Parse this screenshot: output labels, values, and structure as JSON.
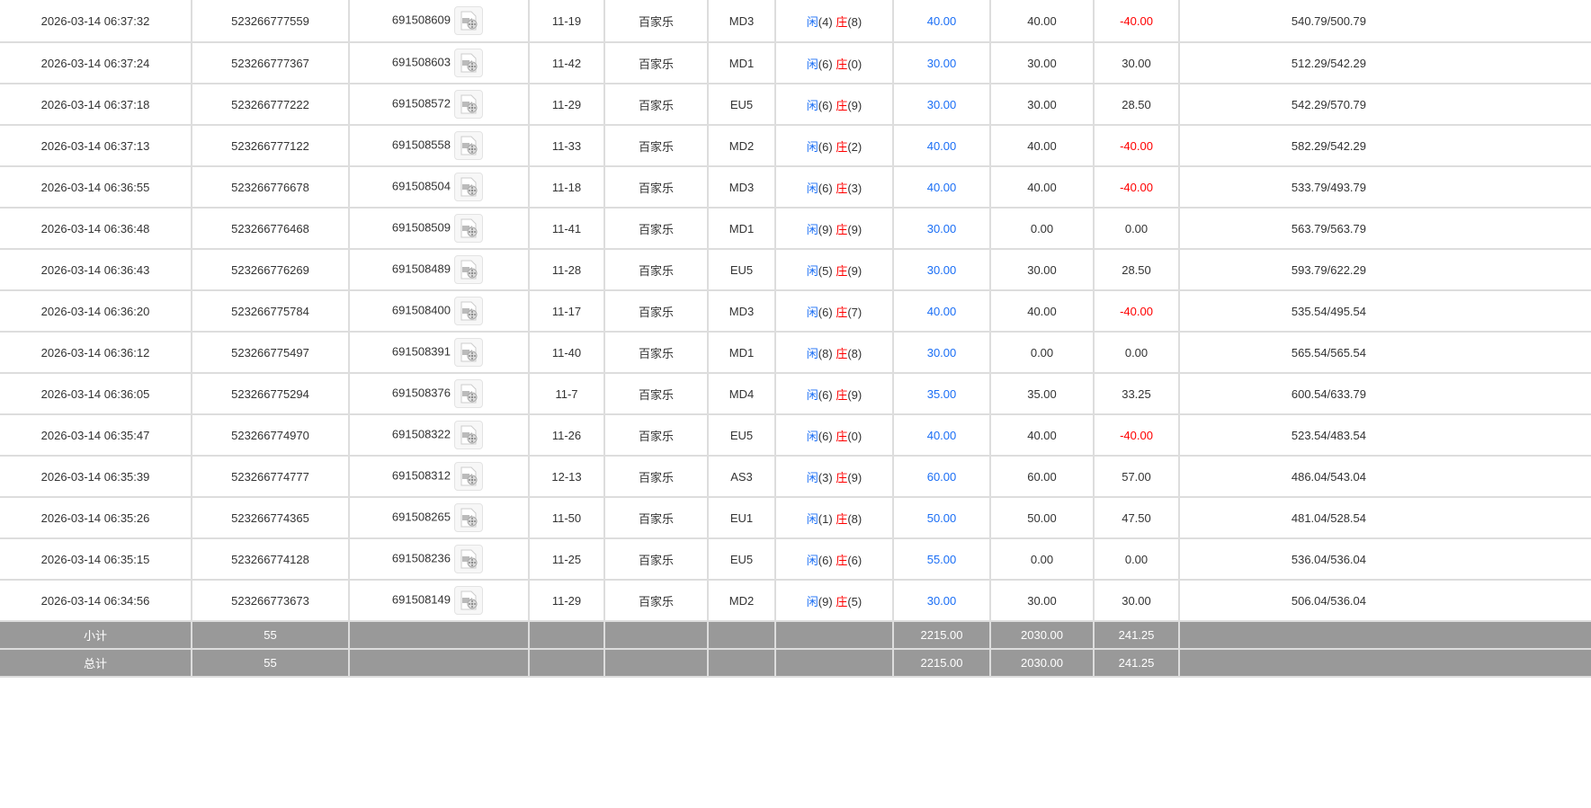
{
  "colors": {
    "player": "#1a6ef5",
    "banker": "#ff0000",
    "bet": "#1a6ef5",
    "loss": "#ff0000",
    "summary_bg": "#999999"
  },
  "rows": [
    {
      "time": "2026-03-14 06:37:32",
      "bet_id": "523266777559",
      "round_id": "691508609",
      "shoe": "11-19",
      "game": "百家乐",
      "table": "MD3",
      "player_label": "闲",
      "player": "(4)",
      "banker_label": "庄",
      "banker": "(8)",
      "bet": "40.00",
      "valid": "40.00",
      "win": "-40.00",
      "balance": "540.79/500.79"
    },
    {
      "time": "2026-03-14 06:37:24",
      "bet_id": "523266777367",
      "round_id": "691508603",
      "shoe": "11-42",
      "game": "百家乐",
      "table": "MD1",
      "player_label": "闲",
      "player": "(6)",
      "banker_label": "庄",
      "banker": "(0)",
      "bet": "30.00",
      "valid": "30.00",
      "win": "30.00",
      "balance": "512.29/542.29"
    },
    {
      "time": "2026-03-14 06:37:18",
      "bet_id": "523266777222",
      "round_id": "691508572",
      "shoe": "11-29",
      "game": "百家乐",
      "table": "EU5",
      "player_label": "闲",
      "player": "(6)",
      "banker_label": "庄",
      "banker": "(9)",
      "bet": "30.00",
      "valid": "30.00",
      "win": "28.50",
      "balance": "542.29/570.79"
    },
    {
      "time": "2026-03-14 06:37:13",
      "bet_id": "523266777122",
      "round_id": "691508558",
      "shoe": "11-33",
      "game": "百家乐",
      "table": "MD2",
      "player_label": "闲",
      "player": "(6)",
      "banker_label": "庄",
      "banker": "(2)",
      "bet": "40.00",
      "valid": "40.00",
      "win": "-40.00",
      "balance": "582.29/542.29"
    },
    {
      "time": "2026-03-14 06:36:55",
      "bet_id": "523266776678",
      "round_id": "691508504",
      "shoe": "11-18",
      "game": "百家乐",
      "table": "MD3",
      "player_label": "闲",
      "player": "(6)",
      "banker_label": "庄",
      "banker": "(3)",
      "bet": "40.00",
      "valid": "40.00",
      "win": "-40.00",
      "balance": "533.79/493.79"
    },
    {
      "time": "2026-03-14 06:36:48",
      "bet_id": "523266776468",
      "round_id": "691508509",
      "shoe": "11-41",
      "game": "百家乐",
      "table": "MD1",
      "player_label": "闲",
      "player": "(9)",
      "banker_label": "庄",
      "banker": "(9)",
      "bet": "30.00",
      "valid": "0.00",
      "win": "0.00",
      "balance": "563.79/563.79"
    },
    {
      "time": "2026-03-14 06:36:43",
      "bet_id": "523266776269",
      "round_id": "691508489",
      "shoe": "11-28",
      "game": "百家乐",
      "table": "EU5",
      "player_label": "闲",
      "player": "(5)",
      "banker_label": "庄",
      "banker": "(9)",
      "bet": "30.00",
      "valid": "30.00",
      "win": "28.50",
      "balance": "593.79/622.29"
    },
    {
      "time": "2026-03-14 06:36:20",
      "bet_id": "523266775784",
      "round_id": "691508400",
      "shoe": "11-17",
      "game": "百家乐",
      "table": "MD3",
      "player_label": "闲",
      "player": "(6)",
      "banker_label": "庄",
      "banker": "(7)",
      "bet": "40.00",
      "valid": "40.00",
      "win": "-40.00",
      "balance": "535.54/495.54"
    },
    {
      "time": "2026-03-14 06:36:12",
      "bet_id": "523266775497",
      "round_id": "691508391",
      "shoe": "11-40",
      "game": "百家乐",
      "table": "MD1",
      "player_label": "闲",
      "player": "(8)",
      "banker_label": "庄",
      "banker": "(8)",
      "bet": "30.00",
      "valid": "0.00",
      "win": "0.00",
      "balance": "565.54/565.54"
    },
    {
      "time": "2026-03-14 06:36:05",
      "bet_id": "523266775294",
      "round_id": "691508376",
      "shoe": "11-7",
      "game": "百家乐",
      "table": "MD4",
      "player_label": "闲",
      "player": "(6)",
      "banker_label": "庄",
      "banker": "(9)",
      "bet": "35.00",
      "valid": "35.00",
      "win": "33.25",
      "balance": "600.54/633.79"
    },
    {
      "time": "2026-03-14 06:35:47",
      "bet_id": "523266774970",
      "round_id": "691508322",
      "shoe": "11-26",
      "game": "百家乐",
      "table": "EU5",
      "player_label": "闲",
      "player": "(6)",
      "banker_label": "庄",
      "banker": "(0)",
      "bet": "40.00",
      "valid": "40.00",
      "win": "-40.00",
      "balance": "523.54/483.54"
    },
    {
      "time": "2026-03-14 06:35:39",
      "bet_id": "523266774777",
      "round_id": "691508312",
      "shoe": "12-13",
      "game": "百家乐",
      "table": "AS3",
      "player_label": "闲",
      "player": "(3)",
      "banker_label": "庄",
      "banker": "(9)",
      "bet": "60.00",
      "valid": "60.00",
      "win": "57.00",
      "balance": "486.04/543.04"
    },
    {
      "time": "2026-03-14 06:35:26",
      "bet_id": "523266774365",
      "round_id": "691508265",
      "shoe": "11-50",
      "game": "百家乐",
      "table": "EU1",
      "player_label": "闲",
      "player": "(1)",
      "banker_label": "庄",
      "banker": "(8)",
      "bet": "50.00",
      "valid": "50.00",
      "win": "47.50",
      "balance": "481.04/528.54"
    },
    {
      "time": "2026-03-14 06:35:15",
      "bet_id": "523266774128",
      "round_id": "691508236",
      "shoe": "11-25",
      "game": "百家乐",
      "table": "EU5",
      "player_label": "闲",
      "player": "(6)",
      "banker_label": "庄",
      "banker": "(6)",
      "bet": "55.00",
      "valid": "0.00",
      "win": "0.00",
      "balance": "536.04/536.04"
    },
    {
      "time": "2026-03-14 06:34:56",
      "bet_id": "523266773673",
      "round_id": "691508149",
      "shoe": "11-29",
      "game": "百家乐",
      "table": "MD2",
      "player_label": "闲",
      "player": "(9)",
      "banker_label": "庄",
      "banker": "(5)",
      "bet": "30.00",
      "valid": "30.00",
      "win": "30.00",
      "balance": "506.04/536.04"
    }
  ],
  "subtotal": {
    "label": "小计",
    "count": "55",
    "bet": "2215.00",
    "valid": "2030.00",
    "win": "241.25"
  },
  "total": {
    "label": "总计",
    "count": "55",
    "bet": "2215.00",
    "valid": "2030.00",
    "win": "241.25"
  },
  "icons": {
    "replay": "video-replay-icon"
  }
}
